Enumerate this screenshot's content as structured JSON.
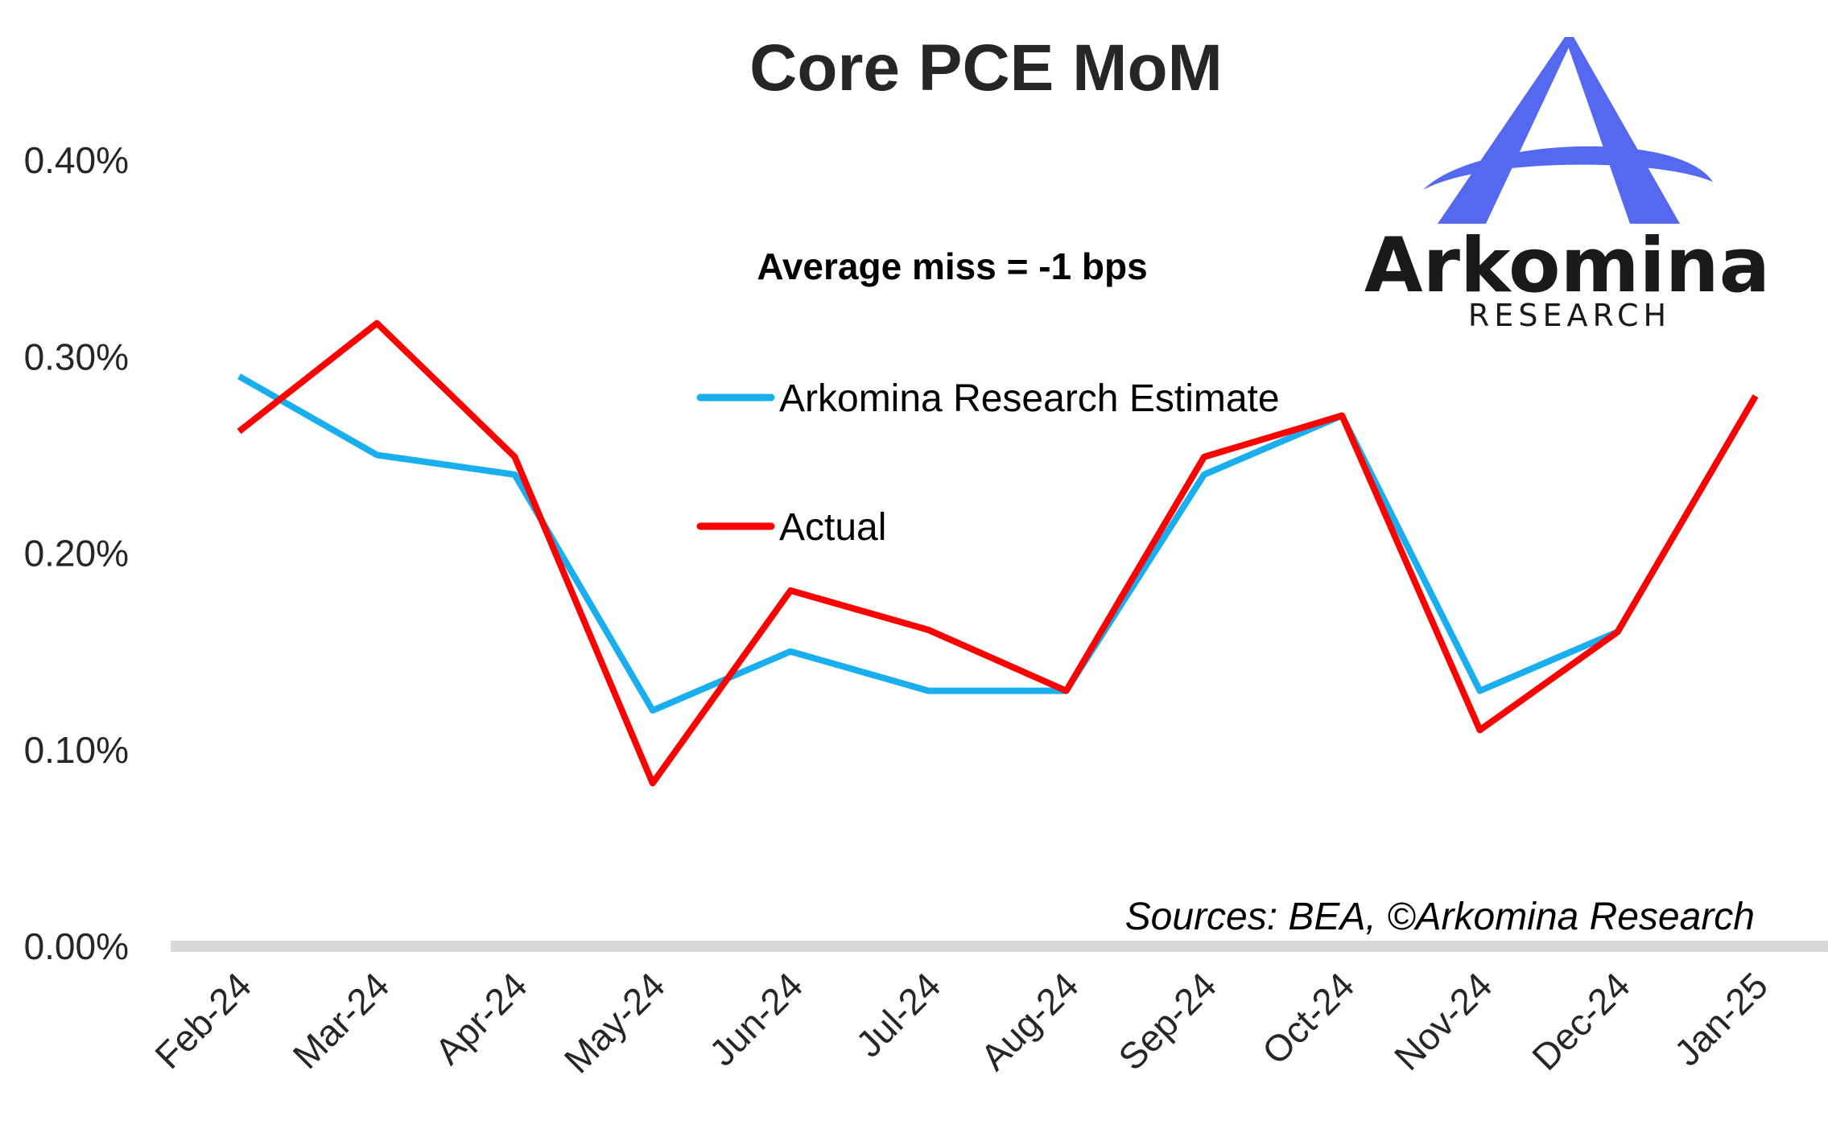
{
  "colors": {
    "estimate": "#19aeed",
    "actual": "#ff0000",
    "axis_line": "#d9d9d9",
    "text": "#262626",
    "logo_primary": "#5468f0"
  },
  "logo": {
    "wordmark": "Arkomina",
    "subtitle": "RESEARCH",
    "icon": "arkomina-a-logo-icon"
  },
  "chart_data": {
    "type": "line",
    "title": "Core PCE MoM",
    "xlabel": "",
    "ylabel": "",
    "categories": [
      "Feb-24",
      "Mar-24",
      "Apr-24",
      "May-24",
      "Jun-24",
      "Jul-24",
      "Aug-24",
      "Sep-24",
      "Oct-24",
      "Nov-24",
      "Dec-24",
      "Jan-25"
    ],
    "ylim": [
      0,
      0.4
    ],
    "yticks": [
      0.0,
      0.1,
      0.2,
      0.3,
      0.4
    ],
    "ytick_labels": [
      "0.00%",
      "0.10%",
      "0.20%",
      "0.30%",
      "0.40%"
    ],
    "grid": false,
    "legend_position": "center",
    "series": [
      {
        "name": "Arkomina Research Estimate",
        "color_key": "estimate",
        "values": [
          0.29,
          0.25,
          0.24,
          0.12,
          0.15,
          0.13,
          0.13,
          0.24,
          0.27,
          0.13,
          0.16,
          0.28
        ]
      },
      {
        "name": "Actual",
        "color_key": "actual",
        "values": [
          0.262,
          0.317,
          0.249,
          0.083,
          0.181,
          0.161,
          0.13,
          0.249,
          0.27,
          0.11,
          0.16,
          0.28
        ]
      }
    ],
    "annotations": {
      "average_miss": "Average miss = -1 bps",
      "source": "Sources: BEA, ©Arkomina Research"
    }
  }
}
